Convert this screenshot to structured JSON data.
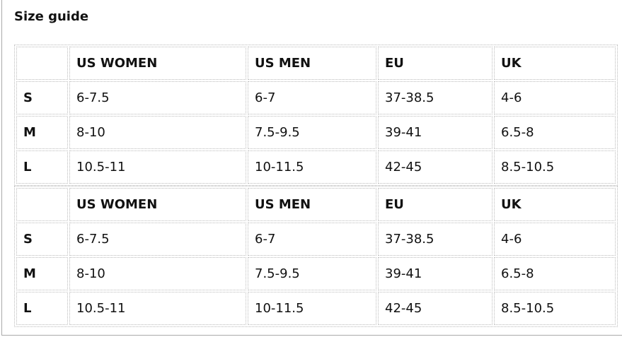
{
  "title": "Size guide",
  "tables": [
    {
      "header": [
        "US WOMEN",
        "US MEN",
        "EU",
        "UK"
      ],
      "rows": [
        [
          "S",
          "6-7.5",
          "6-7",
          "37-38.5",
          "4-6"
        ],
        [
          "M",
          "8-10",
          "7.5-9.5",
          "39-41",
          "6.5-8"
        ],
        [
          "L",
          "10.5-11",
          "10-11.5",
          "42-45",
          "8.5-10.5"
        ]
      ]
    },
    {
      "header": [
        "US WOMEN",
        "US MEN",
        "EU",
        "UK"
      ],
      "rows": [
        [
          "S",
          "6-7.5",
          "6-7",
          "37-38.5",
          "4-6"
        ],
        [
          "M",
          "8-10",
          "7.5-9.5",
          "39-41",
          "6.5-8"
        ],
        [
          "L",
          "10.5-11",
          "10-11.5",
          "42-45",
          "8.5-10.5"
        ]
      ]
    }
  ]
}
